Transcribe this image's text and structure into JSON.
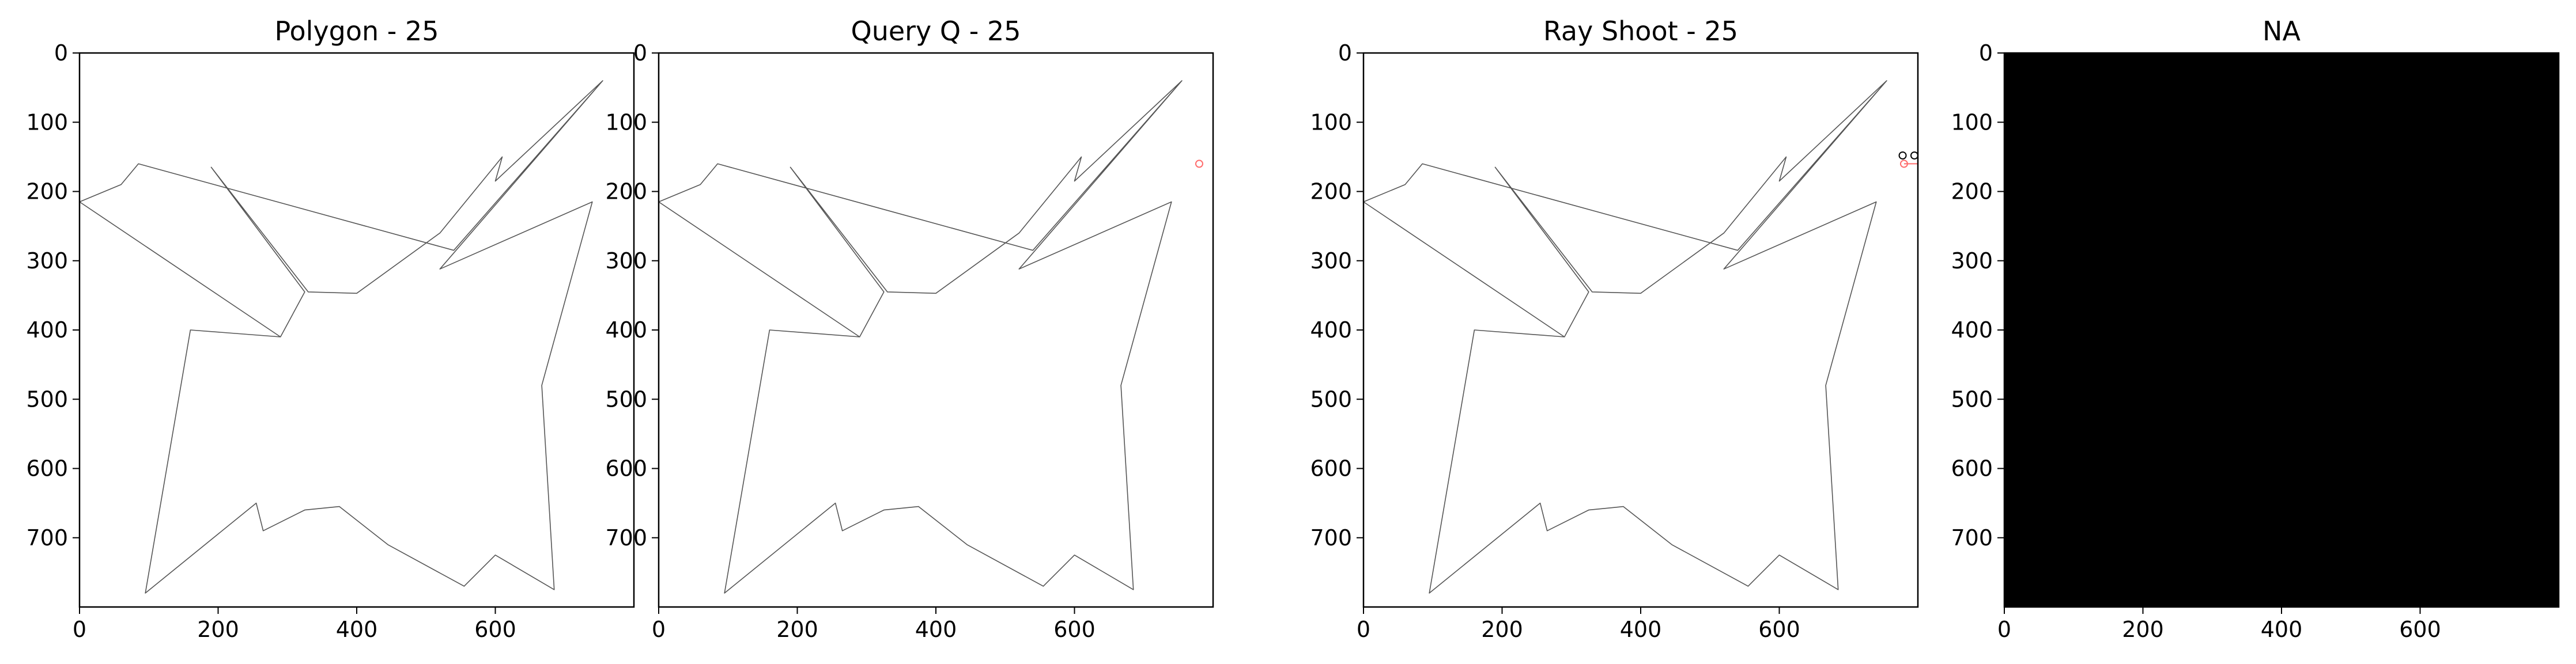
{
  "chart_data": [
    {
      "type": "line",
      "title": "Polygon - 25",
      "xlim": [
        0,
        800
      ],
      "ylim": [
        800,
        0
      ],
      "xticks": [
        0,
        200,
        400,
        600
      ],
      "yticks": [
        0,
        100,
        200,
        300,
        400,
        500,
        600,
        700
      ],
      "background": "#ffffff",
      "polygon_color": "#555555",
      "polygon": [
        [
          755,
          40
        ],
        [
          600,
          185
        ],
        [
          610,
          150
        ],
        [
          520,
          260
        ],
        [
          400,
          347
        ],
        [
          330,
          345
        ],
        [
          190,
          165
        ],
        [
          325,
          345
        ],
        [
          290,
          410
        ],
        [
          160,
          400
        ],
        [
          95,
          780
        ],
        [
          255,
          650
        ],
        [
          265,
          690
        ],
        [
          325,
          660
        ],
        [
          375,
          655
        ],
        [
          445,
          710
        ],
        [
          555,
          770
        ],
        [
          600,
          725
        ],
        [
          685,
          775
        ],
        [
          667,
          480
        ],
        [
          740,
          215
        ],
        [
          520,
          312
        ],
        [
          755,
          40
        ],
        [
          540,
          285
        ],
        [
          85,
          160
        ],
        [
          60,
          190
        ],
        [
          0,
          215
        ],
        [
          290,
          410
        ]
      ],
      "markers": []
    },
    {
      "type": "line",
      "title": "Query Q - 25",
      "xlim": [
        0,
        800
      ],
      "ylim": [
        800,
        0
      ],
      "xticks": [
        0,
        200,
        400,
        600
      ],
      "yticks": [
        0,
        100,
        200,
        300,
        400,
        500,
        600,
        700
      ],
      "background": "#ffffff",
      "polygon_color": "#555555",
      "polygon": [
        [
          755,
          40
        ],
        [
          600,
          185
        ],
        [
          610,
          150
        ],
        [
          520,
          260
        ],
        [
          400,
          347
        ],
        [
          330,
          345
        ],
        [
          190,
          165
        ],
        [
          325,
          345
        ],
        [
          290,
          410
        ],
        [
          160,
          400
        ],
        [
          95,
          780
        ],
        [
          255,
          650
        ],
        [
          265,
          690
        ],
        [
          325,
          660
        ],
        [
          375,
          655
        ],
        [
          445,
          710
        ],
        [
          555,
          770
        ],
        [
          600,
          725
        ],
        [
          685,
          775
        ],
        [
          667,
          480
        ],
        [
          740,
          215
        ],
        [
          520,
          312
        ],
        [
          755,
          40
        ],
        [
          540,
          285
        ],
        [
          85,
          160
        ],
        [
          60,
          190
        ],
        [
          0,
          215
        ],
        [
          290,
          410
        ]
      ],
      "markers": [
        {
          "x": 780,
          "y": 160,
          "color": "#ff6b6b"
        }
      ]
    },
    {
      "type": "line",
      "title": "Ray Shoot - 25",
      "xlim": [
        0,
        800
      ],
      "ylim": [
        800,
        0
      ],
      "xticks": [
        0,
        200,
        400,
        600
      ],
      "yticks": [
        0,
        100,
        200,
        300,
        400,
        500,
        600,
        700
      ],
      "background": "#ffffff",
      "polygon_color": "#555555",
      "polygon": [
        [
          755,
          40
        ],
        [
          600,
          185
        ],
        [
          610,
          150
        ],
        [
          520,
          260
        ],
        [
          400,
          347
        ],
        [
          330,
          345
        ],
        [
          190,
          165
        ],
        [
          325,
          345
        ],
        [
          290,
          410
        ],
        [
          160,
          400
        ],
        [
          95,
          780
        ],
        [
          255,
          650
        ],
        [
          265,
          690
        ],
        [
          325,
          660
        ],
        [
          375,
          655
        ],
        [
          445,
          710
        ],
        [
          555,
          770
        ],
        [
          600,
          725
        ],
        [
          685,
          775
        ],
        [
          667,
          480
        ],
        [
          740,
          215
        ],
        [
          520,
          312
        ],
        [
          755,
          40
        ],
        [
          540,
          285
        ],
        [
          85,
          160
        ],
        [
          60,
          190
        ],
        [
          0,
          215
        ],
        [
          290,
          410
        ]
      ],
      "markers": [
        {
          "x": 780,
          "y": 160,
          "color": "#ff6b6b"
        },
        {
          "x": 778,
          "y": 148,
          "color": "#000000"
        },
        {
          "x": 795,
          "y": 148,
          "color": "#000000"
        }
      ],
      "ray": {
        "from": [
          780,
          160
        ],
        "to": [
          800,
          160
        ],
        "color": "#ff6b6b"
      }
    },
    {
      "type": "heatmap",
      "title": "NA",
      "xlim": [
        0,
        800
      ],
      "ylim": [
        800,
        0
      ],
      "xticks": [
        0,
        200,
        400,
        600
      ],
      "yticks": [
        0,
        100,
        200,
        300,
        400,
        500,
        600,
        700
      ],
      "background": "#000000",
      "polygon": [],
      "markers": []
    }
  ]
}
